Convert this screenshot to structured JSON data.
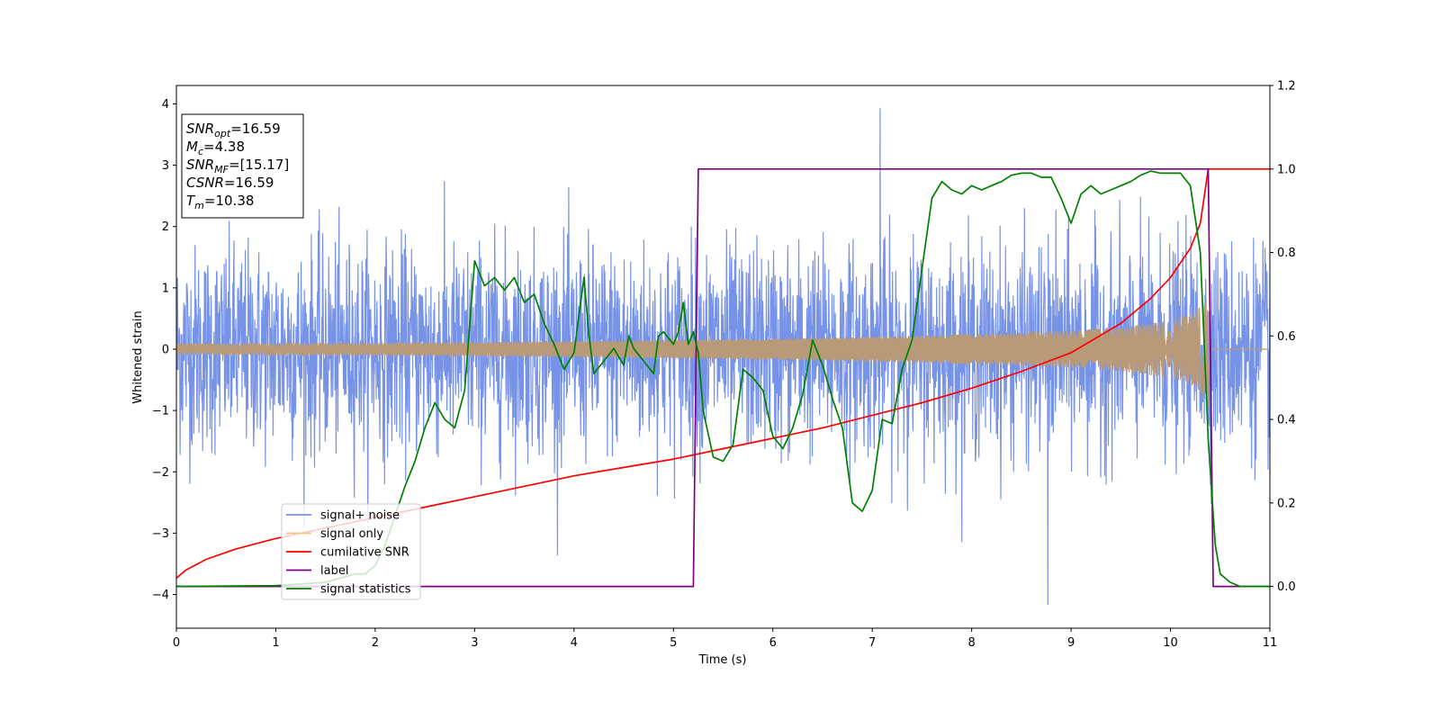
{
  "chart_data": {
    "type": "line",
    "xlabel": "Time (s)",
    "ylabel": "Whitened strain",
    "xlim": [
      0,
      11
    ],
    "ylim_left": [
      -4.55,
      4.3
    ],
    "ylim_right": [
      -0.1,
      1.2
    ],
    "xticks": [
      0,
      1,
      2,
      3,
      4,
      5,
      6,
      7,
      8,
      9,
      10,
      11
    ],
    "yticks_left": [
      -4,
      -3,
      -2,
      -1,
      0,
      1,
      2,
      3,
      4
    ],
    "yticks_right": [
      "0.0",
      "0.2",
      "0.4",
      "0.6",
      "0.8",
      "1.0",
      "1.2"
    ],
    "legend_position": "lower-left",
    "colors": {
      "signal_noise": "#7793e8",
      "signal_only": "#f5c77e",
      "signal_overlap": "#b99a78",
      "cumulative_snr": "#ff0000",
      "label": "#800080",
      "signal_statistics": "#008000"
    },
    "info_box": [
      {
        "sym": "SNR",
        "sub": "opt",
        "val": "=16.59"
      },
      {
        "sym": "M",
        "sub": "c",
        "val": "=4.38"
      },
      {
        "sym": "SNR",
        "sub": "MF",
        "val": "=[15.17]"
      },
      {
        "sym": "CSNR",
        "sub": "",
        "val": "=16.59"
      },
      {
        "sym": "T",
        "sub": "m",
        "val": "=10.38"
      }
    ],
    "series": [
      {
        "name": "signal+ noise",
        "axis": "left",
        "style": "noise",
        "envelope": {
          "x": [
            0,
            2,
            4,
            6,
            8,
            10,
            11
          ],
          "rms": [
            0.62,
            0.62,
            0.62,
            0.62,
            0.62,
            0.62,
            0.62
          ],
          "peak_max": 3.93,
          "peak_min": -4.17
        }
      },
      {
        "name": "signal only",
        "axis": "left",
        "style": "chirp",
        "envelope": {
          "x": [
            0,
            2,
            4,
            6,
            8,
            9,
            9.5,
            10,
            10.2,
            10.3,
            10.38,
            10.4,
            11
          ],
          "amp": [
            0.09,
            0.1,
            0.13,
            0.17,
            0.24,
            0.3,
            0.36,
            0.47,
            0.58,
            0.7,
            0.95,
            0,
            0
          ]
        }
      },
      {
        "name": "cumilative SNR",
        "axis": "right",
        "x": [
          0,
          0.1,
          0.3,
          0.6,
          1.0,
          1.5,
          2.0,
          2.5,
          3.0,
          3.5,
          4.0,
          4.5,
          5.0,
          5.5,
          6.0,
          6.5,
          7.0,
          7.5,
          8.0,
          8.5,
          9.0,
          9.5,
          9.8,
          10.0,
          10.2,
          10.3,
          10.38,
          11.0
        ],
        "y": [
          0.02,
          0.04,
          0.065,
          0.09,
          0.115,
          0.14,
          0.165,
          0.19,
          0.215,
          0.24,
          0.265,
          0.285,
          0.305,
          0.33,
          0.355,
          0.38,
          0.41,
          0.44,
          0.475,
          0.515,
          0.56,
          0.63,
          0.69,
          0.74,
          0.81,
          0.87,
          1.0,
          1.0
        ]
      },
      {
        "name": "label",
        "axis": "right",
        "x": [
          0,
          5.2,
          5.25,
          10.38,
          10.43,
          11.0
        ],
        "y": [
          0,
          0,
          1,
          1,
          0,
          0
        ]
      },
      {
        "name": "signal statistics",
        "axis": "right",
        "x": [
          0,
          1.0,
          1.5,
          1.8,
          1.9,
          2.0,
          2.1,
          2.2,
          2.3,
          2.4,
          2.5,
          2.6,
          2.7,
          2.8,
          2.9,
          3.0,
          3.1,
          3.2,
          3.3,
          3.4,
          3.5,
          3.6,
          3.7,
          3.8,
          3.9,
          4.0,
          4.1,
          4.15,
          4.2,
          4.3,
          4.4,
          4.5,
          4.55,
          4.6,
          4.7,
          4.8,
          4.85,
          4.9,
          5.0,
          5.05,
          5.1,
          5.15,
          5.2,
          5.25,
          5.3,
          5.4,
          5.5,
          5.6,
          5.7,
          5.8,
          5.9,
          6.0,
          6.1,
          6.2,
          6.3,
          6.4,
          6.5,
          6.6,
          6.7,
          6.8,
          6.9,
          7.0,
          7.1,
          7.2,
          7.3,
          7.4,
          7.5,
          7.6,
          7.7,
          7.8,
          7.9,
          8.0,
          8.1,
          8.2,
          8.3,
          8.4,
          8.5,
          8.6,
          8.7,
          8.8,
          8.9,
          9.0,
          9.1,
          9.2,
          9.3,
          9.4,
          9.5,
          9.6,
          9.7,
          9.8,
          9.9,
          10.0,
          10.1,
          10.2,
          10.3,
          10.38,
          10.45,
          10.5,
          10.6,
          10.7,
          10.8,
          11.0
        ],
        "y": [
          0,
          0.002,
          0.01,
          0.03,
          0.03,
          0.05,
          0.1,
          0.17,
          0.24,
          0.3,
          0.38,
          0.44,
          0.4,
          0.38,
          0.47,
          0.78,
          0.72,
          0.74,
          0.71,
          0.74,
          0.68,
          0.7,
          0.63,
          0.58,
          0.52,
          0.56,
          0.74,
          0.6,
          0.51,
          0.54,
          0.57,
          0.53,
          0.6,
          0.57,
          0.54,
          0.51,
          0.6,
          0.61,
          0.58,
          0.61,
          0.68,
          0.58,
          0.61,
          0.56,
          0.42,
          0.31,
          0.3,
          0.34,
          0.52,
          0.5,
          0.47,
          0.36,
          0.33,
          0.38,
          0.46,
          0.59,
          0.53,
          0.45,
          0.38,
          0.2,
          0.18,
          0.23,
          0.4,
          0.39,
          0.52,
          0.59,
          0.76,
          0.93,
          0.97,
          0.95,
          0.94,
          0.96,
          0.95,
          0.96,
          0.97,
          0.985,
          0.99,
          0.99,
          0.98,
          0.98,
          0.93,
          0.87,
          0.94,
          0.96,
          0.94,
          0.95,
          0.96,
          0.97,
          0.985,
          0.995,
          0.99,
          0.99,
          0.99,
          0.96,
          0.8,
          0.35,
          0.1,
          0.03,
          0.01,
          0.0,
          0.0,
          0.0
        ]
      }
    ]
  }
}
